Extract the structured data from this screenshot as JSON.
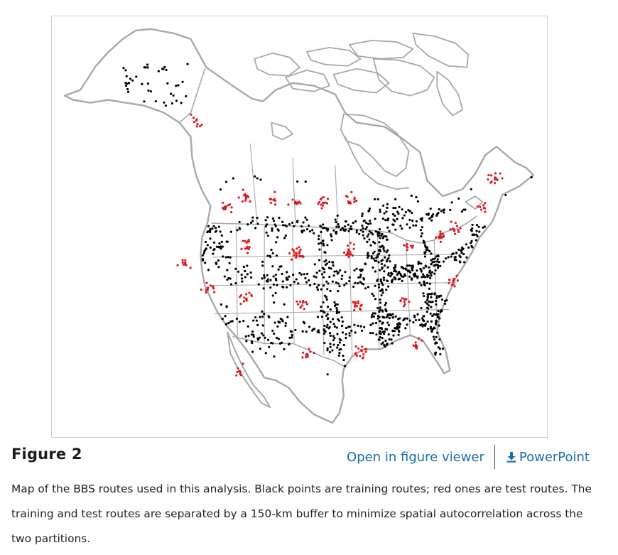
{
  "figure": {
    "label": "Figure 2",
    "caption": "Map of the BBS routes used in this analysis. Black points are training routes; red ones are test routes. The training and test routes are separated by a 150-km buffer to minimize spatial autocorrelation across the two partitions."
  },
  "links": {
    "viewer": "Open in figure viewer",
    "powerpoint": "PowerPoint",
    "powerpoint_icon": "download-arrow-icon"
  },
  "colors": {
    "training_points": "#000000",
    "test_points": "#e0191e",
    "borders": "#a8a8a8",
    "link": "#1a6fa8"
  },
  "map": {
    "region": "North America (Canada, United States, Mexico)",
    "legend_in_caption": {
      "training": "Black points are training routes",
      "test": "red ones are test routes"
    }
  }
}
